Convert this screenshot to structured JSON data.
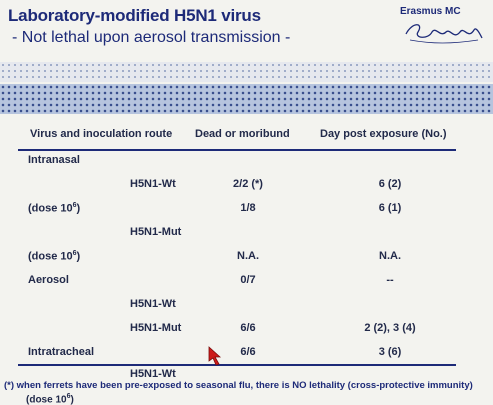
{
  "slide": {
    "title": "Laboratory-modified H5N1 virus",
    "subtitle": "- Not lethal upon aerosol transmission -",
    "logo": {
      "text": "Erasmus MC",
      "script_text": "Erafurg"
    }
  },
  "table": {
    "headers": {
      "route": "Virus and inoculation route",
      "dead": "Dead or moribund",
      "day": "Day post exposure (No.)"
    },
    "rows": [
      {
        "label": "Intranasal"
      },
      {
        "sub": "H5N1-Wt",
        "dead": "2/2 (*)",
        "day": "6 (2)"
      },
      {
        "label": "(dose 10",
        "label_sup": "6",
        "label_end": ")",
        "dead": "1/8",
        "day": "6 (1)"
      },
      {
        "sub": "H5N1-Mut"
      },
      {
        "label": "(dose 10",
        "label_sup": "6",
        "label_end": ")",
        "dead": "N.A.",
        "day": "N.A."
      },
      {
        "label": "Aerosol",
        "dead": "0/7",
        "day": "--"
      },
      {
        "sub": "H5N1-Wt"
      },
      {
        "sub": "H5N1-Mut",
        "dead": "6/6",
        "day": "2 (2), 3 (4)"
      },
      {
        "label": "Intratracheal",
        "dead": "6/6",
        "day": "3 (6)"
      },
      {
        "sub": "H5N1-Wt"
      }
    ],
    "footnote": "(*) when ferrets have been pre-exposed to seasonal flu, there is NO lethality (cross-protective immunity)",
    "clipped_line": "(dose 10",
    "clipped_sup": "6",
    "clipped_end": ")"
  },
  "colors": {
    "title": "#1d2a78",
    "band": "#b6c4de",
    "dots": "#3a4f8e",
    "pointer": "#cc1a1a"
  },
  "icons": {
    "pointer": "mouse-pointer-icon"
  }
}
